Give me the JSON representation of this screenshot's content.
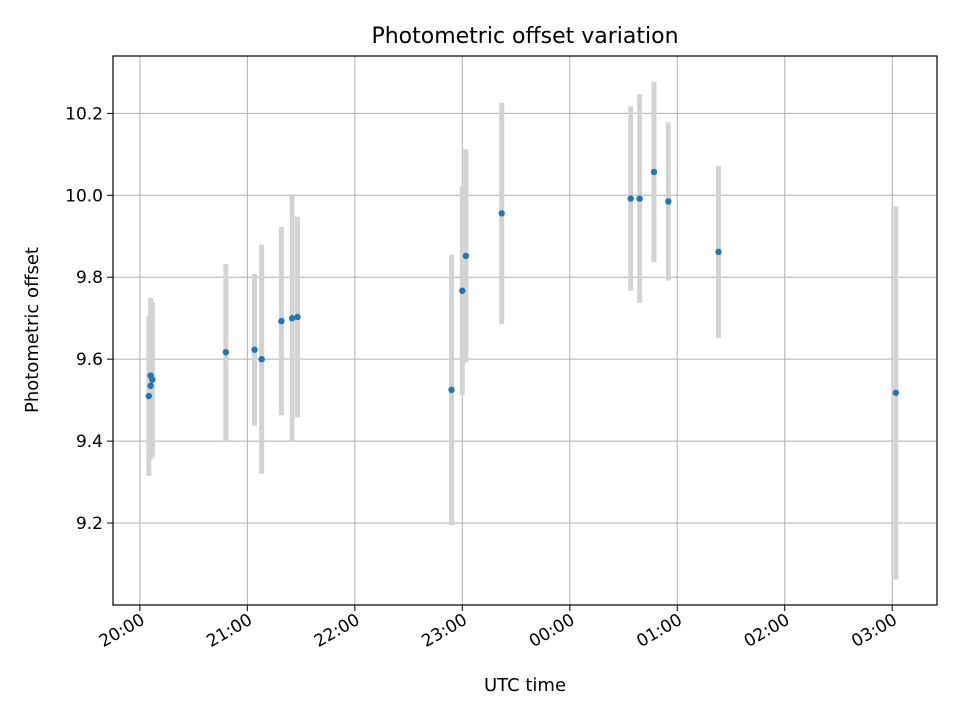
{
  "chart_data": {
    "type": "scatter",
    "title": "Photometric offset variation",
    "xlabel": "UTC time",
    "ylabel": "Photometric offset",
    "grid": true,
    "xlim": [
      "19:45",
      "03:25"
    ],
    "ylim": [
      9.0,
      10.34
    ],
    "x_tick_labels": [
      "20:00",
      "21:00",
      "22:00",
      "23:00",
      "00:00",
      "01:00",
      "02:00",
      "03:00"
    ],
    "y_ticks": [
      9.2,
      9.4,
      9.6,
      9.8,
      10.0,
      10.2
    ],
    "y_tick_labels": [
      "9.2",
      "9.4",
      "9.6",
      "9.8",
      "10.0",
      "10.2"
    ],
    "points_color": "#1f77b4",
    "errorbar_color": "#d3d3d3",
    "points": [
      {
        "time": "20:05",
        "y": 9.51,
        "yerr": 0.195
      },
      {
        "time": "20:06",
        "y": 9.535,
        "yerr": 0.18
      },
      {
        "time": "20:06",
        "y": 9.56,
        "yerr": 0.19
      },
      {
        "time": "20:07",
        "y": 9.55,
        "yerr": 0.19
      },
      {
        "time": "20:48",
        "y": 9.617,
        "yerr": 0.215
      },
      {
        "time": "21:04",
        "y": 9.623,
        "yerr": 0.185
      },
      {
        "time": "21:08",
        "y": 9.6,
        "yerr": 0.28
      },
      {
        "time": "21:19",
        "y": 9.693,
        "yerr": 0.23
      },
      {
        "time": "21:25",
        "y": 9.7,
        "yerr": 0.3
      },
      {
        "time": "21:28",
        "y": 9.703,
        "yerr": 0.245
      },
      {
        "time": "22:54",
        "y": 9.525,
        "yerr": 0.33
      },
      {
        "time": "23:00",
        "y": 9.767,
        "yerr": 0.255
      },
      {
        "time": "23:02",
        "y": 9.852,
        "yerr": 0.26
      },
      {
        "time": "23:22",
        "y": 9.956,
        "yerr": 0.27
      },
      {
        "time": "00:34",
        "y": 9.992,
        "yerr": 0.225
      },
      {
        "time": "00:39",
        "y": 9.992,
        "yerr": 0.255
      },
      {
        "time": "00:47",
        "y": 10.057,
        "yerr": 0.22
      },
      {
        "time": "00:55",
        "y": 9.985,
        "yerr": 0.193
      },
      {
        "time": "01:23",
        "y": 9.862,
        "yerr": 0.21
      },
      {
        "time": "03:02",
        "y": 9.518,
        "yerr": 0.455
      }
    ]
  }
}
